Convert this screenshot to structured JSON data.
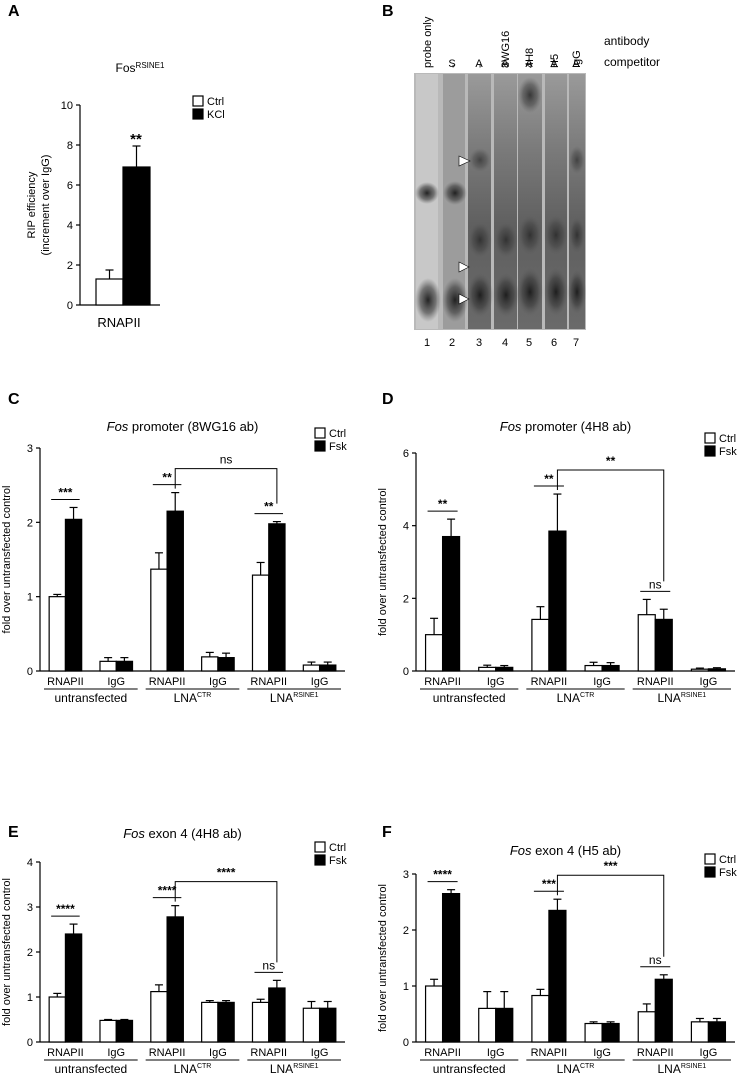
{
  "panels": {
    "A": {
      "letter": "A"
    },
    "B": {
      "letter": "B"
    },
    "C": {
      "letter": "C"
    },
    "D": {
      "letter": "D"
    },
    "E": {
      "letter": "E"
    },
    "F": {
      "letter": "F"
    }
  },
  "legend": {
    "ctrl": "Ctrl",
    "kcl": "KCl",
    "fsk": "Fsk"
  },
  "colors": {
    "ctrl": "#ffffff",
    "treated": "#000000"
  },
  "gel": {
    "lane_labels": [
      "probe only",
      "-",
      "-",
      "8WG16",
      "4H8",
      "H5",
      "IgG"
    ],
    "competitor": [
      "S",
      "A",
      "A",
      "A",
      "A",
      "A"
    ],
    "antibody_label": "antibody",
    "competitor_label": "competitor",
    "lane_numbers": [
      "1",
      "2",
      "3",
      "4",
      "5",
      "6",
      "7"
    ]
  },
  "chart_data": [
    {
      "panel": "A",
      "type": "bar",
      "title": "Fos",
      "title_sup": "RSINE1",
      "ylabel": "RIP efficiency",
      "ylabel2": "(increment over IgG)",
      "ylim": [
        0,
        10
      ],
      "yticks": [
        0,
        2,
        4,
        6,
        8,
        10
      ],
      "group_labels": [
        "RNAPII"
      ],
      "groups": [
        "RNAPII"
      ],
      "legend": [
        "Ctrl",
        "KCl"
      ],
      "series": [
        {
          "name": "Ctrl",
          "values": [
            1.3
          ],
          "errors": [
            0.45
          ]
        },
        {
          "name": "KCl",
          "values": [
            6.9
          ],
          "errors": [
            1.05
          ]
        }
      ],
      "annotations": [
        {
          "label": "**",
          "type": "star"
        }
      ]
    },
    {
      "panel": "C",
      "type": "bar",
      "title_italic": "Fos",
      "title_rest": " promoter (8WG16 ab)",
      "ylabel": "fold over untransfected control",
      "ylim": [
        0,
        3
      ],
      "yticks": [
        0,
        1,
        2,
        3
      ],
      "categories": [
        "RNAPII",
        "IgG",
        "RNAPII",
        "IgG",
        "RNAPII",
        "IgG"
      ],
      "groups": [
        "untransfected",
        "LNA",
        "LNA"
      ],
      "group_sups": [
        "",
        "CTR",
        "RSINE1"
      ],
      "legend": [
        "Ctrl",
        "Fsk"
      ],
      "series": [
        {
          "name": "Ctrl",
          "values": [
            1.0,
            0.13,
            1.37,
            0.19,
            1.29,
            0.08
          ],
          "errors": [
            0.03,
            0.05,
            0.22,
            0.06,
            0.17,
            0.04
          ]
        },
        {
          "name": "Fsk",
          "values": [
            2.04,
            0.13,
            2.15,
            0.18,
            1.98,
            0.08
          ],
          "errors": [
            0.16,
            0.05,
            0.25,
            0.06,
            0.03,
            0.04
          ]
        }
      ],
      "annotations": [
        {
          "label": "***",
          "bar": 0
        },
        {
          "label": "**",
          "bar": 2
        },
        {
          "label": "**",
          "bar": 4
        },
        {
          "label": "ns",
          "from_bar": 2,
          "to_bar": 4
        }
      ]
    },
    {
      "panel": "D",
      "type": "bar",
      "title_italic": "Fos",
      "title_rest": " promoter (4H8 ab)",
      "ylabel": "fold over untransfected control",
      "ylim": [
        0,
        6
      ],
      "yticks": [
        0,
        2,
        4,
        6
      ],
      "categories": [
        "RNAPII",
        "IgG",
        "RNAPII",
        "IgG",
        "RNAPII",
        "IgG"
      ],
      "groups": [
        "untransfected",
        "LNA",
        "LNA"
      ],
      "group_sups": [
        "",
        "CTR",
        "RSINE1"
      ],
      "legend": [
        "Ctrl",
        "Fsk"
      ],
      "series": [
        {
          "name": "Ctrl",
          "values": [
            1.0,
            0.1,
            1.42,
            0.15,
            1.55,
            0.05
          ],
          "errors": [
            0.45,
            0.06,
            0.35,
            0.09,
            0.42,
            0.03
          ]
        },
        {
          "name": "Fsk",
          "values": [
            3.7,
            0.1,
            3.85,
            0.15,
            1.42,
            0.06
          ],
          "errors": [
            0.48,
            0.05,
            1.02,
            0.08,
            0.28,
            0.03
          ]
        }
      ],
      "annotations": [
        {
          "label": "**",
          "bar": 0
        },
        {
          "label": "**",
          "bar": 2
        },
        {
          "label": "ns",
          "bar": 4
        },
        {
          "label": "**",
          "from_bar": 2,
          "to_bar": 4
        }
      ]
    },
    {
      "panel": "E",
      "type": "bar",
      "title_italic": "Fos",
      "title_rest": " exon 4 (4H8 ab)",
      "ylabel": "fold over untransfected control",
      "ylim": [
        0,
        4
      ],
      "yticks": [
        0,
        1,
        2,
        3,
        4
      ],
      "categories": [
        "RNAPII",
        "IgG",
        "RNAPII",
        "IgG",
        "RNAPII",
        "IgG"
      ],
      "groups": [
        "untransfected",
        "LNA",
        "LNA"
      ],
      "group_sups": [
        "",
        "CTR",
        "RSINE1"
      ],
      "legend": [
        "Ctrl",
        "Fsk"
      ],
      "series": [
        {
          "name": "Ctrl",
          "values": [
            1.0,
            0.48,
            1.12,
            0.88,
            0.88,
            0.75
          ],
          "errors": [
            0.08,
            0.02,
            0.15,
            0.04,
            0.07,
            0.15
          ]
        },
        {
          "name": "Fsk",
          "values": [
            2.4,
            0.48,
            2.78,
            0.88,
            1.2,
            0.75
          ],
          "errors": [
            0.22,
            0.02,
            0.25,
            0.04,
            0.17,
            0.15
          ]
        }
      ],
      "annotations": [
        {
          "label": "****",
          "bar": 0
        },
        {
          "label": "****",
          "bar": 2
        },
        {
          "label": "ns",
          "bar": 4
        },
        {
          "label": "****",
          "from_bar": 2,
          "to_bar": 4
        }
      ]
    },
    {
      "panel": "F",
      "type": "bar",
      "title_italic": "Fos",
      "title_rest": " exon 4 (H5 ab)",
      "ylabel": "fold over untransfected control",
      "ylim": [
        0,
        3
      ],
      "yticks": [
        0,
        1,
        2,
        3
      ],
      "categories": [
        "RNAPII",
        "IgG",
        "RNAPII",
        "IgG",
        "RNAPII",
        "IgG"
      ],
      "groups": [
        "untransfected",
        "LNA",
        "LNA"
      ],
      "group_sups": [
        "",
        "CTR",
        "RSINE1"
      ],
      "legend": [
        "Ctrl",
        "Fsk"
      ],
      "series": [
        {
          "name": "Ctrl",
          "values": [
            1.0,
            0.6,
            0.83,
            0.33,
            0.54,
            0.36
          ],
          "errors": [
            0.12,
            0.3,
            0.11,
            0.03,
            0.14,
            0.06
          ]
        },
        {
          "name": "Fsk",
          "values": [
            2.65,
            0.6,
            2.35,
            0.33,
            1.12,
            0.36
          ],
          "errors": [
            0.07,
            0.3,
            0.2,
            0.03,
            0.08,
            0.06
          ]
        }
      ],
      "annotations": [
        {
          "label": "****",
          "bar": 0
        },
        {
          "label": "***",
          "bar": 2
        },
        {
          "label": "ns",
          "bar": 4
        },
        {
          "label": "***",
          "from_bar": 2,
          "to_bar": 4
        }
      ]
    }
  ]
}
